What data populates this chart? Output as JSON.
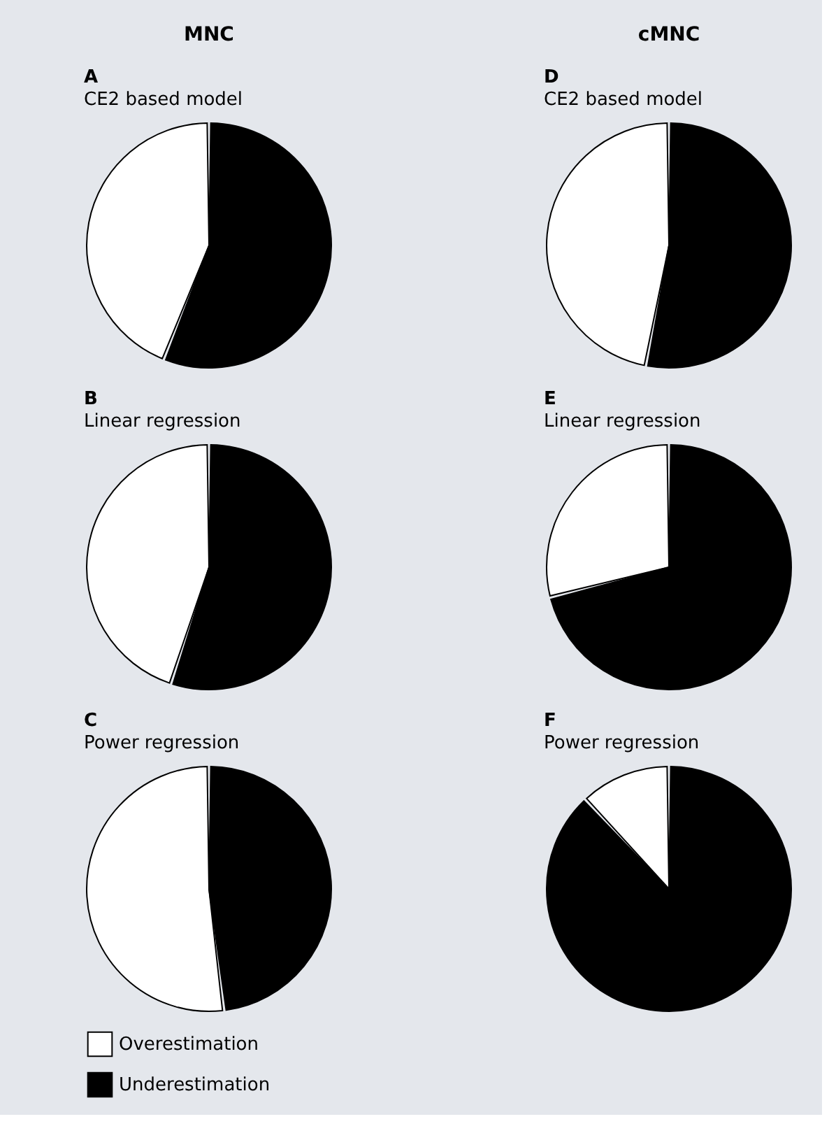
{
  "chart_data": [
    {
      "type": "pie",
      "title": "A",
      "subtitle": "CE2 based model",
      "annotations": [
        "MNC"
      ],
      "categories": [
        null,
        null
      ],
      "values": [
        44,
        56
      ],
      "colors": [
        "#ffffff",
        "#000000"
      ],
      "legend": false
    },
    {
      "type": "pie",
      "title": "D",
      "subtitle": "CE2 based model",
      "annotations": [
        "cMNC"
      ],
      "categories": [
        null,
        null
      ],
      "values": [
        47,
        53
      ],
      "colors": [
        "#ffffff",
        "#000000"
      ],
      "legend": false
    },
    {
      "type": "pie",
      "title": "B",
      "subtitle": "Linear regression",
      "categories": [
        null,
        null
      ],
      "values": [
        45,
        55
      ],
      "colors": [
        "#ffffff",
        "#000000"
      ],
      "legend": false
    },
    {
      "type": "pie",
      "title": "E",
      "subtitle": "Linear regression",
      "categories": [
        null,
        null
      ],
      "values": [
        29,
        71
      ],
      "colors": [
        "#ffffff",
        "#000000"
      ],
      "legend": false
    },
    {
      "type": "pie",
      "title": "C",
      "subtitle": "Power regression",
      "categories": [
        "Overestimation",
        "Underestimation"
      ],
      "values": [
        52,
        48
      ],
      "colors": [
        "#ffffff",
        "#000000"
      ],
      "legend": "bottom left"
    },
    {
      "type": "pie",
      "title": "F",
      "subtitle": "Power regression",
      "categories": [
        null,
        null
      ],
      "values": [
        12,
        88
      ],
      "colors": [
        "#ffffff",
        "#000000"
      ],
      "legend": false
    }
  ]
}
